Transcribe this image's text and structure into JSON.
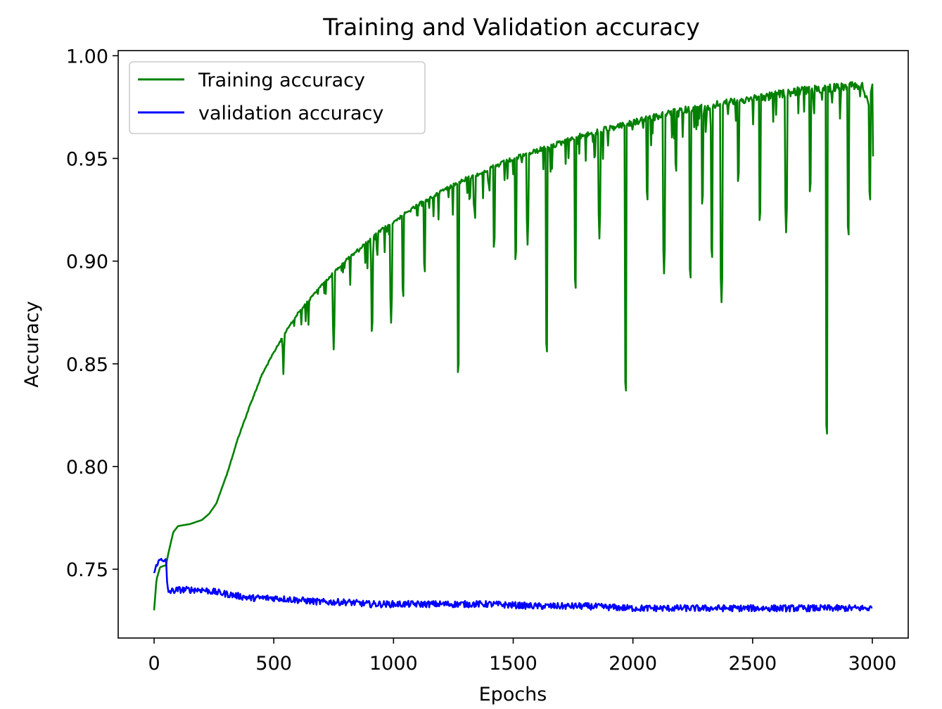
{
  "chart_data": {
    "type": "line",
    "title": "Training and Validation accuracy",
    "xlabel": "Epochs",
    "ylabel": "Accuracy",
    "xlim": [
      -150,
      3150
    ],
    "ylim": [
      0.7165,
      1.0025
    ],
    "xticks": [
      0,
      500,
      1000,
      1500,
      2000,
      2500,
      3000
    ],
    "yticks": [
      0.75,
      0.8,
      0.85,
      0.9,
      0.95,
      1.0
    ],
    "xtick_labels": [
      "0",
      "500",
      "1000",
      "1500",
      "2000",
      "2500",
      "3000"
    ],
    "ytick_labels": [
      "0.75",
      "0.80",
      "0.85",
      "0.90",
      "0.95",
      "1.00"
    ],
    "grid": false,
    "legend_position": "upper-left",
    "series": [
      {
        "name": "Training accuracy",
        "color": "#008000",
        "points": [
          [
            0,
            0.73
          ],
          [
            10,
            0.745
          ],
          [
            25,
            0.751
          ],
          [
            50,
            0.752
          ],
          [
            60,
            0.758
          ],
          [
            80,
            0.768
          ],
          [
            100,
            0.771
          ],
          [
            150,
            0.772
          ],
          [
            200,
            0.774
          ],
          [
            230,
            0.777
          ],
          [
            260,
            0.782
          ],
          [
            300,
            0.795
          ],
          [
            350,
            0.814
          ],
          [
            400,
            0.83
          ],
          [
            450,
            0.845
          ],
          [
            500,
            0.856
          ],
          [
            550,
            0.866
          ],
          [
            600,
            0.875
          ],
          [
            650,
            0.882
          ],
          [
            700,
            0.889
          ],
          [
            750,
            0.895
          ],
          [
            800,
            0.901
          ],
          [
            850,
            0.906
          ],
          [
            900,
            0.911
          ],
          [
            950,
            0.916
          ],
          [
            1000,
            0.92
          ],
          [
            1100,
            0.928
          ],
          [
            1200,
            0.935
          ],
          [
            1300,
            0.941
          ],
          [
            1400,
            0.946
          ],
          [
            1500,
            0.951
          ],
          [
            1600,
            0.955
          ],
          [
            1700,
            0.959
          ],
          [
            1800,
            0.963
          ],
          [
            1900,
            0.966
          ],
          [
            2000,
            0.969
          ],
          [
            2100,
            0.972
          ],
          [
            2200,
            0.975
          ],
          [
            2300,
            0.977
          ],
          [
            2400,
            0.979
          ],
          [
            2500,
            0.981
          ],
          [
            2600,
            0.983
          ],
          [
            2700,
            0.985
          ],
          [
            2800,
            0.986
          ],
          [
            2900,
            0.987
          ],
          [
            2960,
            0.988
          ],
          [
            2985,
            0.976
          ],
          [
            3000,
            0.986
          ],
          [
            3003,
            0.951
          ]
        ],
        "dips": [
          [
            540,
            0.845
          ],
          [
            645,
            0.869
          ],
          [
            750,
            0.857
          ],
          [
            910,
            0.862
          ],
          [
            990,
            0.87
          ],
          [
            1040,
            0.879
          ],
          [
            1130,
            0.891
          ],
          [
            1270,
            0.842
          ],
          [
            1340,
            0.917
          ],
          [
            1420,
            0.903
          ],
          [
            1510,
            0.897
          ],
          [
            1560,
            0.908
          ],
          [
            1640,
            0.852
          ],
          [
            1760,
            0.883
          ],
          [
            1860,
            0.911
          ],
          [
            1970,
            0.833
          ],
          [
            2060,
            0.926
          ],
          [
            2130,
            0.894
          ],
          [
            2180,
            0.94
          ],
          [
            2240,
            0.888
          ],
          [
            2290,
            0.924
          ],
          [
            2330,
            0.898
          ],
          [
            2370,
            0.88
          ],
          [
            2440,
            0.935
          ],
          [
            2530,
            0.916
          ],
          [
            2640,
            0.914
          ],
          [
            2740,
            0.93
          ],
          [
            2810,
            0.812
          ],
          [
            2900,
            0.909
          ],
          [
            2990,
            0.926
          ]
        ]
      },
      {
        "name": "validation accuracy",
        "color": "#0000ff",
        "points": [
          [
            0,
            0.748
          ],
          [
            10,
            0.752
          ],
          [
            20,
            0.754
          ],
          [
            30,
            0.755
          ],
          [
            45,
            0.754
          ],
          [
            50,
            0.755
          ],
          [
            55,
            0.741
          ],
          [
            60,
            0.739
          ],
          [
            100,
            0.74
          ],
          [
            200,
            0.74
          ],
          [
            300,
            0.738
          ],
          [
            400,
            0.736
          ],
          [
            500,
            0.736
          ],
          [
            600,
            0.735
          ],
          [
            700,
            0.734
          ],
          [
            800,
            0.734
          ],
          [
            900,
            0.733
          ],
          [
            1000,
            0.733
          ],
          [
            1200,
            0.733
          ],
          [
            1400,
            0.733
          ],
          [
            1600,
            0.732
          ],
          [
            1800,
            0.732
          ],
          [
            2000,
            0.731
          ],
          [
            2200,
            0.731
          ],
          [
            2400,
            0.731
          ],
          [
            2600,
            0.731
          ],
          [
            2800,
            0.731
          ],
          [
            3000,
            0.731
          ]
        ]
      }
    ]
  }
}
